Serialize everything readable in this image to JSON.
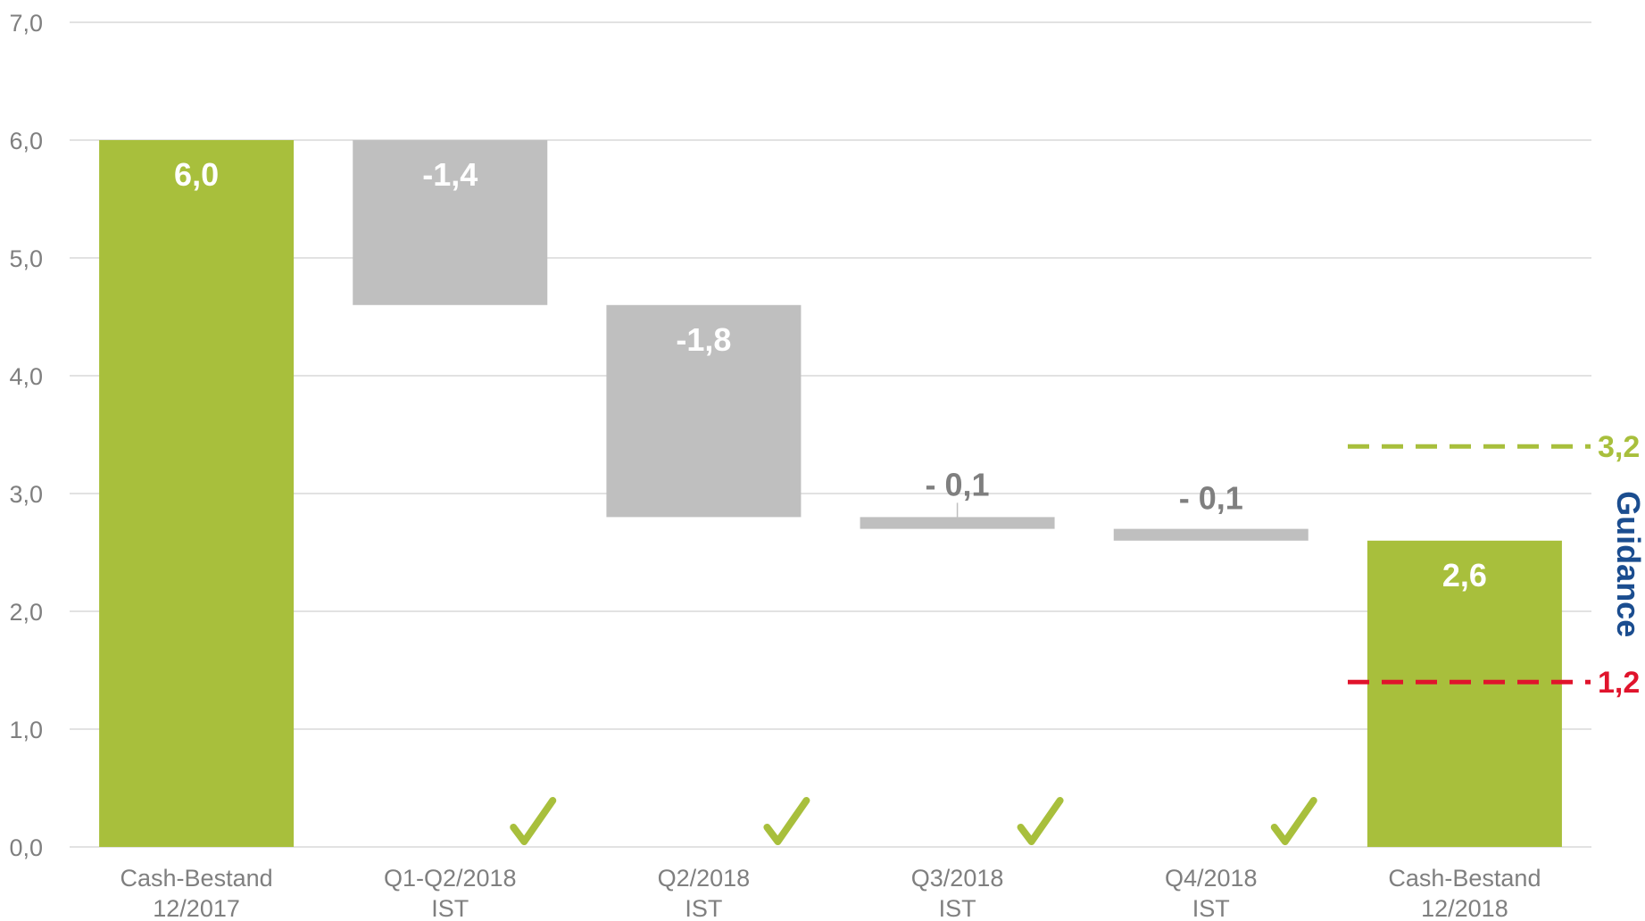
{
  "chart_data": {
    "type": "bar",
    "subtype": "waterfall",
    "ylim": [
      0,
      7
    ],
    "y_ticks": [
      "0,0",
      "1,0",
      "2,0",
      "3,0",
      "4,0",
      "5,0",
      "6,0",
      "7,0"
    ],
    "grid": true,
    "bars": [
      {
        "category": [
          "Cash-Bestand",
          "12/2017"
        ],
        "kind": "total",
        "start": 0,
        "end": 6.0,
        "label": "6,0",
        "check": false
      },
      {
        "category": [
          "Q1-Q2/2018",
          "IST"
        ],
        "kind": "delta",
        "start": 6.0,
        "end": 4.6,
        "label": "-1,4",
        "check": true
      },
      {
        "category": [
          "Q2/2018",
          "IST"
        ],
        "kind": "delta",
        "start": 4.6,
        "end": 2.8,
        "label": "-1,8",
        "check": true
      },
      {
        "category": [
          "Q3/2018",
          "IST"
        ],
        "kind": "delta",
        "start": 2.8,
        "end": 2.7,
        "label": "- 0,1",
        "check": true
      },
      {
        "category": [
          "Q4/2018",
          "IST"
        ],
        "kind": "delta",
        "start": 2.7,
        "end": 2.6,
        "label": "- 0,1",
        "check": true
      },
      {
        "category": [
          "Cash-Bestand",
          "12/2018"
        ],
        "kind": "total",
        "start": 0,
        "end": 2.6,
        "label": "2,6",
        "check": false
      }
    ],
    "guidance": {
      "title": "Guidance",
      "upper": {
        "label": "3,2",
        "y": 3.4
      },
      "lower": {
        "label": "1,2",
        "y": 1.4
      }
    },
    "colors": {
      "total": "#a8bf3c",
      "delta": "#bfbfbf",
      "delta_label": "#7f7f7f",
      "total_label": "#ffffff",
      "upper_guidance": "#a8bf3c",
      "lower_guidance": "#e0142c",
      "guidance_title": "#1b4d8f",
      "grid": "#d9d9d9",
      "check": "#a8bf3c"
    }
  }
}
